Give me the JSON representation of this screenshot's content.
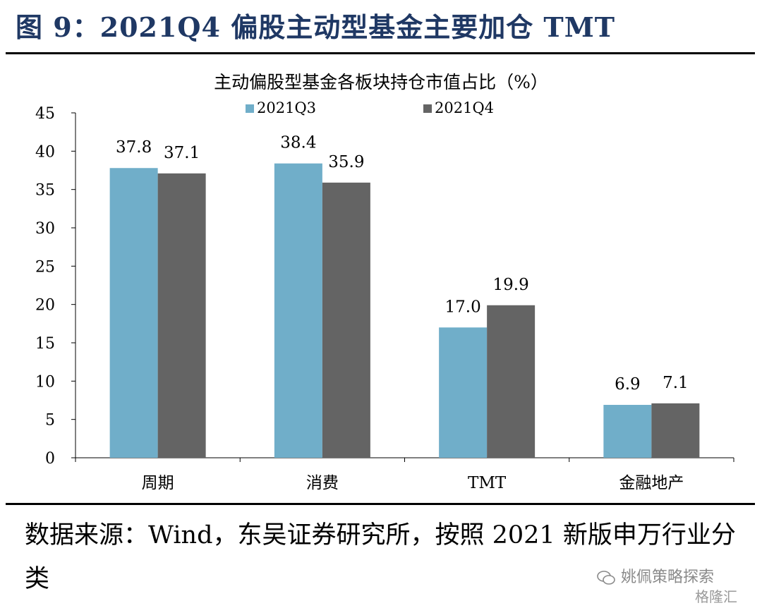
{
  "figure": {
    "title": "图 9：2021Q4 偏股主动型基金主要加仓 TMT"
  },
  "source": {
    "text": "数据来源：Wind，东吴证券研究所，按照 2021 新版申万行业分类"
  },
  "watermark": {
    "text": "姚佩策略探索",
    "logo_text": "格隆汇"
  },
  "chart_data": {
    "type": "bar",
    "title": "主动偏股型基金各板块持仓市值占比（%）",
    "categories": [
      "周期",
      "消费",
      "TMT",
      "金融地产"
    ],
    "series": [
      {
        "name": "2021Q3",
        "values": [
          37.8,
          38.4,
          17.0,
          6.9
        ],
        "labels": [
          "37.8",
          "38.4",
          "17.0",
          "6.9"
        ],
        "color": "#70aec9"
      },
      {
        "name": "2021Q4",
        "values": [
          37.1,
          35.9,
          19.9,
          7.1
        ],
        "labels": [
          "37.1",
          "35.9",
          "19.9",
          "7.1"
        ],
        "color": "#646464"
      }
    ],
    "ylim": [
      0,
      45
    ],
    "yticks": [
      "0",
      "5",
      "10",
      "15",
      "20",
      "25",
      "30",
      "35",
      "40",
      "45"
    ],
    "xlabel": "",
    "ylabel": "",
    "grid": false,
    "legend": "top"
  }
}
